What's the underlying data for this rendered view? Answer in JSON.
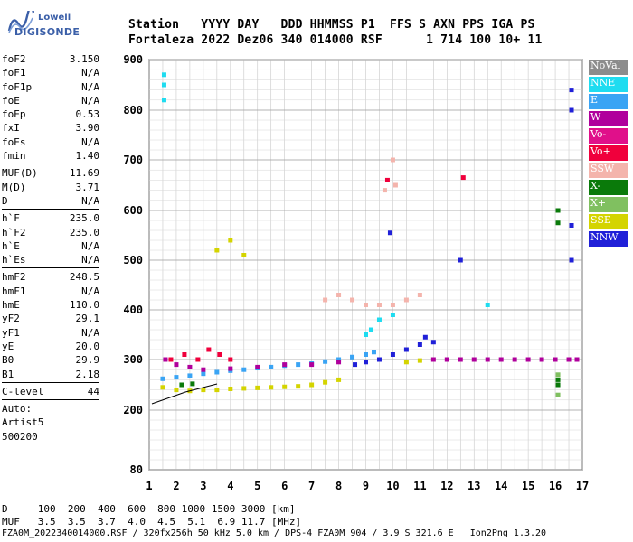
{
  "logo": {
    "line1": "Lowell",
    "line2": "DIGISONDE"
  },
  "header": {
    "line1": "Station   YYYY DAY   DDD HHMMSS P1  FFS S AXN PPS IGA PS",
    "line2": "Fortaleza 2022 Dez06 340 014000 RSF      1 714 100 10+ 11"
  },
  "sidebar": {
    "group1": [
      {
        "k": "foF2",
        "v": "3.150"
      },
      {
        "k": "foF1",
        "v": "N/A"
      },
      {
        "k": "foF1p",
        "v": "N/A"
      },
      {
        "k": "foE",
        "v": "N/A"
      },
      {
        "k": "foEp",
        "v": "0.53"
      },
      {
        "k": "fxI",
        "v": "3.90"
      },
      {
        "k": "foEs",
        "v": "N/A"
      },
      {
        "k": "fmin",
        "v": "1.40"
      }
    ],
    "group2": [
      {
        "k": "MUF(D)",
        "v": "11.69"
      },
      {
        "k": "M(D)",
        "v": "3.71"
      },
      {
        "k": "D",
        "v": "N/A"
      }
    ],
    "group3": [
      {
        "k": "h`F",
        "v": "235.0"
      },
      {
        "k": "h`F2",
        "v": "235.0"
      },
      {
        "k": "h`E",
        "v": "N/A"
      },
      {
        "k": "h`Es",
        "v": "N/A"
      }
    ],
    "group4": [
      {
        "k": "hmF2",
        "v": "248.5"
      },
      {
        "k": "hmF1",
        "v": "N/A"
      },
      {
        "k": "hmE",
        "v": "110.0"
      },
      {
        "k": "yF2",
        "v": "29.1"
      },
      {
        "k": "yF1",
        "v": "N/A"
      },
      {
        "k": "yE",
        "v": "20.0"
      },
      {
        "k": "B0",
        "v": "29.9"
      },
      {
        "k": "B1",
        "v": "2.18"
      }
    ],
    "group5": [
      {
        "k": "C-level",
        "v": "44"
      }
    ],
    "auto": [
      "Auto:",
      "Artist5",
      "500200"
    ]
  },
  "footer": {
    "d_line": "D     100  200  400  600  800 1000 1500 3000 [km]",
    "muf_line": "MUF   3.5  3.5  3.7  4.0  4.5  5.1  6.9 11.7 [MHz]",
    "file_line": "FZA0M_2022340014000.RSF / 320fx256h 50 kHz 5.0 km / DPS-4 FZA0M 904 / 3.9 S 321.6 E   Ion2Png 1.3.20"
  },
  "colors": {
    "NoVal": "#8c8c8c",
    "NNE": "#1fdcf0",
    "E": "#3aa4f4",
    "W": "#b0009c",
    "Vo-": "#e0108a",
    "Vo+": "#f0003c",
    "SSW": "#f4b4ac",
    "X-": "#0a7a0a",
    "X+": "#80c060",
    "SSE": "#d4d400",
    "NNW": "#2020d8"
  },
  "chart_data": {
    "type": "scatter",
    "title": "",
    "xlabel": "",
    "ylabel": "",
    "xlim": [
      1,
      17
    ],
    "ylim": [
      80,
      900
    ],
    "x_ticks": [
      1,
      2,
      3,
      4,
      5,
      6,
      7,
      8,
      9,
      10,
      11,
      12,
      13,
      14,
      15,
      16,
      17
    ],
    "y_ticks": [
      80,
      200,
      300,
      400,
      500,
      600,
      700,
      800,
      900
    ],
    "grid": true,
    "legend_position": "right",
    "legend": [
      "NoVal",
      "NNE",
      "E",
      "W",
      "Vo-",
      "Vo+",
      "SSW",
      "X-",
      "X+",
      "SSE",
      "NNW"
    ],
    "series": [
      {
        "name": "SSE",
        "points": [
          [
            1.5,
            245
          ],
          [
            2.0,
            240
          ],
          [
            2.5,
            238
          ],
          [
            3.0,
            240
          ],
          [
            3.5,
            240
          ],
          [
            4.0,
            242
          ],
          [
            4.5,
            243
          ],
          [
            5.0,
            244
          ],
          [
            5.5,
            245
          ],
          [
            6.0,
            246
          ],
          [
            6.5,
            247
          ],
          [
            7.0,
            250
          ],
          [
            7.5,
            255
          ],
          [
            8.0,
            260
          ],
          [
            10.5,
            295
          ],
          [
            11.0,
            298
          ],
          [
            3.5,
            520
          ],
          [
            4.0,
            540
          ],
          [
            4.5,
            510
          ]
        ]
      },
      {
        "name": "E",
        "points": [
          [
            1.5,
            262
          ],
          [
            2.0,
            265
          ],
          [
            2.5,
            268
          ],
          [
            3.0,
            272
          ],
          [
            3.5,
            275
          ],
          [
            4.0,
            278
          ],
          [
            4.5,
            280
          ],
          [
            5.0,
            283
          ],
          [
            5.5,
            285
          ],
          [
            6.0,
            288
          ],
          [
            6.5,
            290
          ],
          [
            7.0,
            292
          ],
          [
            7.5,
            296
          ],
          [
            8.0,
            300
          ],
          [
            8.5,
            305
          ],
          [
            9.0,
            310
          ],
          [
            9.3,
            315
          ]
        ]
      },
      {
        "name": "W",
        "points": [
          [
            1.6,
            300
          ],
          [
            2.0,
            290
          ],
          [
            2.5,
            285
          ],
          [
            3.0,
            280
          ],
          [
            4.0,
            282
          ],
          [
            5.0,
            285
          ],
          [
            6.0,
            290
          ],
          [
            7.0,
            290
          ],
          [
            8.0,
            295
          ],
          [
            11.5,
            300
          ],
          [
            12.0,
            300
          ],
          [
            12.5,
            300
          ],
          [
            13.0,
            300
          ],
          [
            13.5,
            300
          ],
          [
            14.0,
            300
          ],
          [
            14.5,
            300
          ],
          [
            15.0,
            300
          ],
          [
            15.5,
            300
          ],
          [
            16.0,
            300
          ],
          [
            16.5,
            300
          ],
          [
            16.8,
            300
          ]
        ]
      },
      {
        "name": "NNW",
        "points": [
          [
            8.6,
            290
          ],
          [
            9.0,
            295
          ],
          [
            9.5,
            300
          ],
          [
            10.0,
            310
          ],
          [
            10.5,
            320
          ],
          [
            11.0,
            330
          ],
          [
            11.5,
            335
          ],
          [
            11.2,
            345
          ],
          [
            9.9,
            555
          ],
          [
            12.5,
            500
          ],
          [
            16.6,
            500
          ],
          [
            16.6,
            570
          ],
          [
            16.6,
            800
          ],
          [
            16.6,
            840
          ]
        ]
      },
      {
        "name": "NNE",
        "points": [
          [
            1.55,
            820
          ],
          [
            1.55,
            850
          ],
          [
            1.55,
            870
          ],
          [
            9.0,
            350
          ],
          [
            9.2,
            360
          ],
          [
            9.5,
            380
          ],
          [
            10.0,
            390
          ],
          [
            13.5,
            410
          ]
        ]
      },
      {
        "name": "SSW",
        "points": [
          [
            7.5,
            420
          ],
          [
            8.0,
            430
          ],
          [
            8.5,
            420
          ],
          [
            9.0,
            410
          ],
          [
            9.5,
            410
          ],
          [
            10.0,
            410
          ],
          [
            10.5,
            420
          ],
          [
            11.0,
            430
          ],
          [
            10.0,
            700
          ],
          [
            10.1,
            650
          ],
          [
            9.7,
            640
          ]
        ]
      },
      {
        "name": "Vo+",
        "points": [
          [
            1.8,
            300
          ],
          [
            2.3,
            310
          ],
          [
            2.8,
            300
          ],
          [
            3.2,
            320
          ],
          [
            3.6,
            310
          ],
          [
            4.0,
            300
          ],
          [
            9.8,
            660
          ],
          [
            12.6,
            665
          ]
        ]
      },
      {
        "name": "X-",
        "points": [
          [
            2.2,
            250
          ],
          [
            2.6,
            252
          ],
          [
            16.1,
            250
          ],
          [
            16.1,
            260
          ],
          [
            16.1,
            600
          ],
          [
            16.1,
            575
          ]
        ]
      },
      {
        "name": "X+",
        "points": [
          [
            16.1,
            230
          ],
          [
            16.1,
            270
          ]
        ]
      }
    ]
  }
}
